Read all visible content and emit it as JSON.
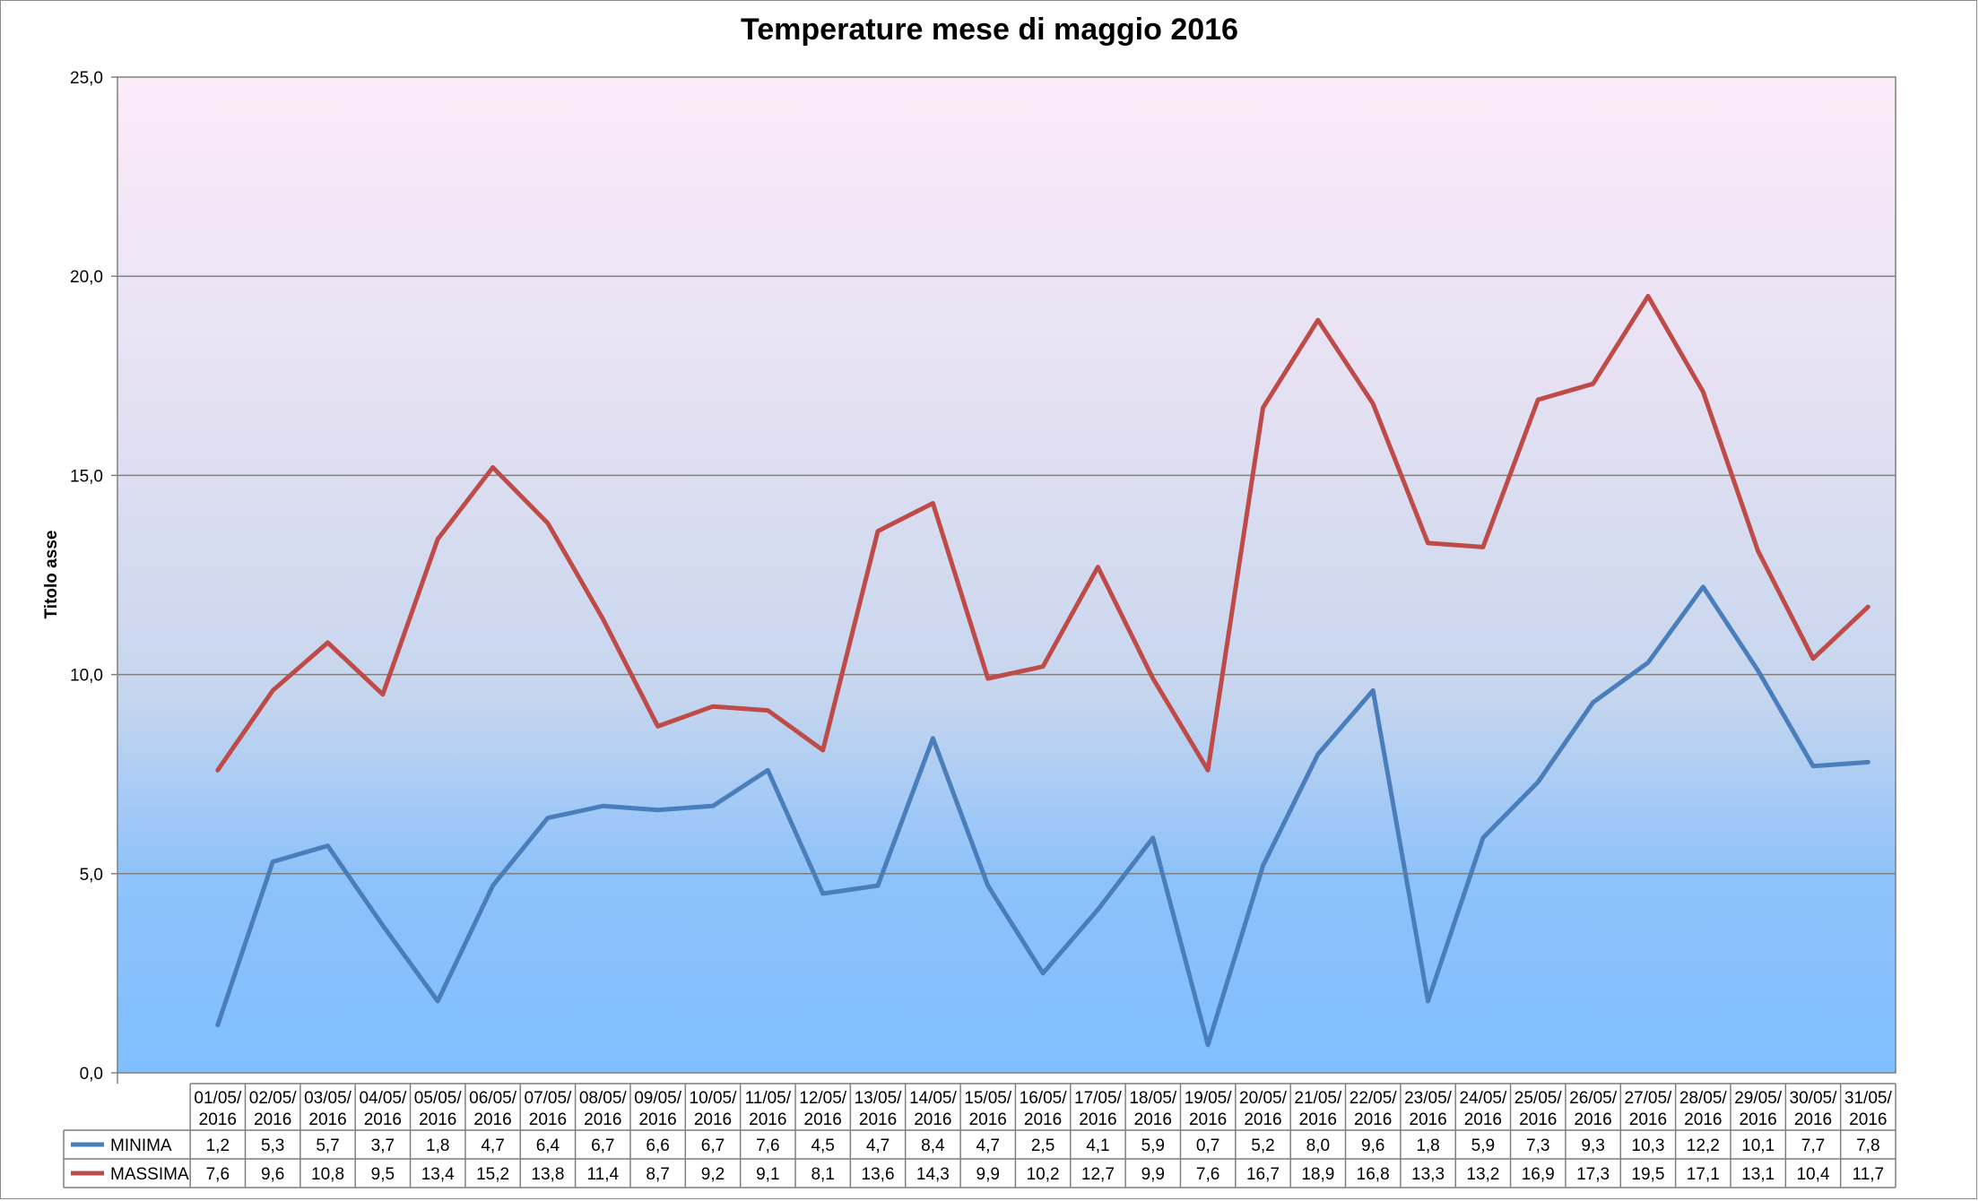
{
  "chart_data": {
    "type": "line",
    "title": "Temperature mese di maggio 2016",
    "ylabel": "Titolo asse",
    "ylim": [
      0,
      25
    ],
    "yticks": [
      "0,0",
      "5,0",
      "10,0",
      "15,0",
      "20,0",
      "25,0"
    ],
    "grid": true,
    "legend": "data-table",
    "categories": [
      [
        "01/05/",
        "2016"
      ],
      [
        "02/05/",
        "2016"
      ],
      [
        "03/05/",
        "2016"
      ],
      [
        "04/05/",
        "2016"
      ],
      [
        "05/05/",
        "2016"
      ],
      [
        "06/05/",
        "2016"
      ],
      [
        "07/05/",
        "2016"
      ],
      [
        "08/05/",
        "2016"
      ],
      [
        "09/05/",
        "2016"
      ],
      [
        "10/05/",
        "2016"
      ],
      [
        "11/05/",
        "2016"
      ],
      [
        "12/05/",
        "2016"
      ],
      [
        "13/05/",
        "2016"
      ],
      [
        "14/05/",
        "2016"
      ],
      [
        "15/05/",
        "2016"
      ],
      [
        "16/05/",
        "2016"
      ],
      [
        "17/05/",
        "2016"
      ],
      [
        "18/05/",
        "2016"
      ],
      [
        "19/05/",
        "2016"
      ],
      [
        "20/05/",
        "2016"
      ],
      [
        "21/05/",
        "2016"
      ],
      [
        "22/05/",
        "2016"
      ],
      [
        "23/05/",
        "2016"
      ],
      [
        "24/05/",
        "2016"
      ],
      [
        "25/05/",
        "2016"
      ],
      [
        "26/05/",
        "2016"
      ],
      [
        "27/05/",
        "2016"
      ],
      [
        "28/05/",
        "2016"
      ],
      [
        "29/05/",
        "2016"
      ],
      [
        "30/05/",
        "2016"
      ],
      [
        "31/05/",
        "2016"
      ]
    ],
    "series": [
      {
        "name": "MINIMA",
        "color": "#4a7ebb",
        "values": [
          1.2,
          5.3,
          5.7,
          3.7,
          1.8,
          4.7,
          6.4,
          6.7,
          6.6,
          6.7,
          7.6,
          4.5,
          4.7,
          8.4,
          4.7,
          2.5,
          4.1,
          5.9,
          0.7,
          5.2,
          8.0,
          9.6,
          1.8,
          5.9,
          7.3,
          9.3,
          10.3,
          12.2,
          10.1,
          7.7,
          7.8
        ],
        "labels": [
          "1,2",
          "5,3",
          "5,7",
          "3,7",
          "1,8",
          "4,7",
          "6,4",
          "6,7",
          "6,6",
          "6,7",
          "7,6",
          "4,5",
          "4,7",
          "8,4",
          "4,7",
          "2,5",
          "4,1",
          "5,9",
          "0,7",
          "5,2",
          "8,0",
          "9,6",
          "1,8",
          "5,9",
          "7,3",
          "9,3",
          "10,3",
          "12,2",
          "10,1",
          "7,7",
          "7,8"
        ]
      },
      {
        "name": "MASSIMA",
        "color": "#be4b48",
        "values": [
          7.6,
          9.6,
          10.8,
          9.5,
          13.4,
          15.2,
          13.8,
          11.4,
          8.7,
          9.2,
          9.1,
          8.1,
          13.6,
          14.3,
          9.9,
          10.2,
          12.7,
          9.9,
          7.6,
          16.7,
          18.9,
          16.8,
          13.3,
          13.2,
          16.9,
          17.3,
          19.5,
          17.1,
          13.1,
          10.4,
          11.7
        ],
        "labels": [
          "7,6",
          "9,6",
          "10,8",
          "9,5",
          "13,4",
          "15,2",
          "13,8",
          "11,4",
          "8,7",
          "9,2",
          "9,1",
          "8,1",
          "13,6",
          "14,3",
          "9,9",
          "10,2",
          "12,7",
          "9,9",
          "7,6",
          "16,7",
          "18,9",
          "16,8",
          "13,3",
          "13,2",
          "16,9",
          "17,3",
          "19,5",
          "17,1",
          "13,1",
          "10,4",
          "11,7"
        ]
      }
    ]
  }
}
